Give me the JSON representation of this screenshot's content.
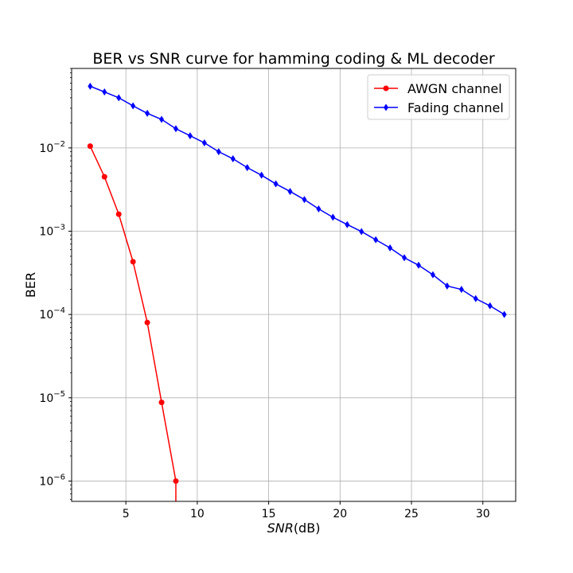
{
  "chart_data": {
    "type": "line",
    "title": "BER vs SNR curve for hamming coding & ML decoder",
    "xlabel_main": "SNR",
    "xlabel_unit": "(dB)",
    "ylabel": "BER",
    "xlim": [
      1.2,
      32.3
    ],
    "ylim": [
      5.7e-07,
      0.09
    ],
    "yscale": "log",
    "grid": true,
    "legend_position": "top-right",
    "x_ticks": [
      5,
      10,
      15,
      20,
      25,
      30
    ],
    "y_ticks": [
      {
        "value": 1e-06,
        "base": "10",
        "exp": "−6"
      },
      {
        "value": 1e-05,
        "base": "10",
        "exp": "−5"
      },
      {
        "value": 0.0001,
        "base": "10",
        "exp": "−4"
      },
      {
        "value": 0.001,
        "base": "10",
        "exp": "−3"
      },
      {
        "value": 0.01,
        "base": "10",
        "exp": "−2"
      }
    ],
    "series": [
      {
        "name": "AWGN channel",
        "color": "#ff0000",
        "marker": "circle",
        "x": [
          2.5,
          3.5,
          4.5,
          5.5,
          6.5,
          7.5,
          8.5
        ],
        "y": [
          0.0105,
          0.0045,
          0.0016,
          0.00043,
          8e-05,
          8.8e-06,
          1e-06
        ],
        "tail_to_bottom": true
      },
      {
        "name": "Fading channel",
        "color": "#0000ff",
        "marker": "diamond",
        "x": [
          2.5,
          3.5,
          4.5,
          5.5,
          6.5,
          7.5,
          8.5,
          9.5,
          10.5,
          11.5,
          12.5,
          13.5,
          14.5,
          15.5,
          16.5,
          17.5,
          18.5,
          19.5,
          20.5,
          21.5,
          22.5,
          23.5,
          24.5,
          25.5,
          26.5,
          27.5,
          28.5,
          29.5,
          30.5,
          31.5
        ],
        "y": [
          0.055,
          0.047,
          0.04,
          0.032,
          0.026,
          0.022,
          0.017,
          0.014,
          0.0115,
          0.009,
          0.0074,
          0.0058,
          0.0047,
          0.0037,
          0.003,
          0.0024,
          0.00185,
          0.00147,
          0.0012,
          0.00099,
          0.00079,
          0.00063,
          0.00048,
          0.00039,
          0.0003,
          0.00022,
          0.0002,
          0.000155,
          0.000127,
          0.0001
        ],
        "tail_to_bottom": false
      }
    ]
  }
}
